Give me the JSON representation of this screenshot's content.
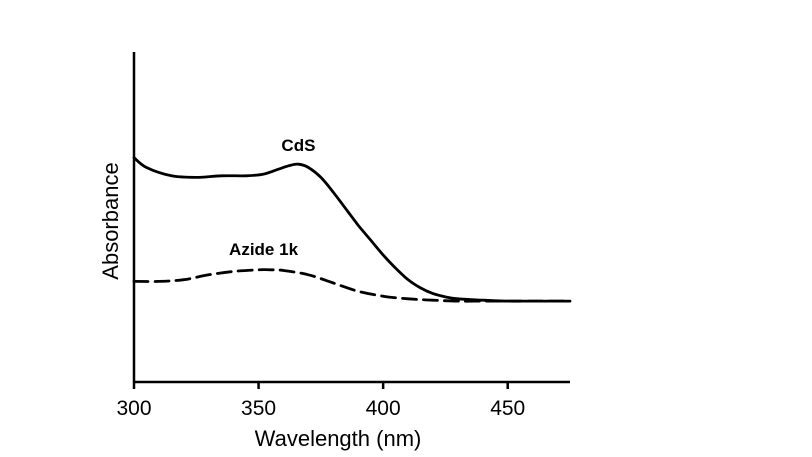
{
  "chart_data": {
    "type": "line",
    "title": "",
    "xlabel": "Wavelength (nm)",
    "ylabel": "Absorbance",
    "xlim": [
      300,
      475
    ],
    "ylim": [
      0,
      1
    ],
    "x_ticks": [
      "300",
      "350",
      "400",
      "450"
    ],
    "x_tick_values": [
      300,
      350,
      400,
      450
    ],
    "y_ticks_shown": false,
    "grid": false,
    "legend": "none",
    "series": [
      {
        "name": "CdS",
        "style": "solid",
        "color": "#000000",
        "x": [
          300,
          305,
          315,
          325,
          335,
          345,
          352,
          358,
          362,
          366,
          370,
          375,
          380,
          385,
          390,
          395,
          400,
          405,
          410,
          415,
          420,
          425,
          430,
          440,
          450,
          460,
          475
        ],
        "y": [
          0.68,
          0.65,
          0.625,
          0.62,
          0.625,
          0.625,
          0.63,
          0.645,
          0.655,
          0.66,
          0.65,
          0.62,
          0.575,
          0.525,
          0.475,
          0.43,
          0.385,
          0.345,
          0.31,
          0.285,
          0.268,
          0.258,
          0.252,
          0.248,
          0.245,
          0.245,
          0.245
        ]
      },
      {
        "name": "Azide 1k",
        "style": "dashed",
        "color": "#000000",
        "x": [
          300,
          310,
          320,
          330,
          340,
          350,
          355,
          360,
          370,
          380,
          390,
          400,
          410,
          420,
          430,
          440,
          450,
          460,
          475
        ],
        "y": [
          0.305,
          0.305,
          0.31,
          0.325,
          0.335,
          0.34,
          0.34,
          0.338,
          0.325,
          0.3,
          0.275,
          0.26,
          0.252,
          0.248,
          0.245,
          0.245,
          0.245,
          0.245,
          0.245
        ]
      }
    ],
    "annotations": [
      {
        "text": "CdS",
        "x": 366,
        "y": 0.7
      },
      {
        "text": "Azide 1k",
        "x": 352,
        "y": 0.385
      }
    ]
  }
}
